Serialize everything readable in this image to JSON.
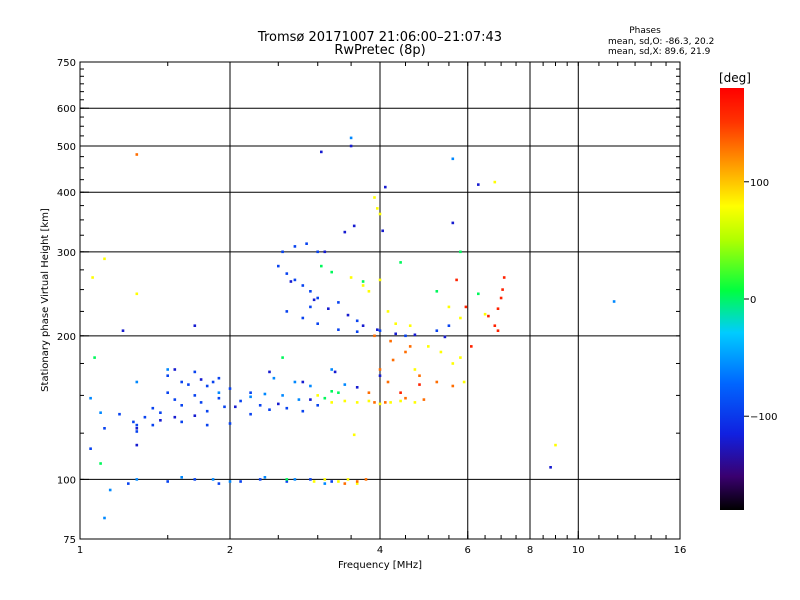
{
  "chart_data": {
    "type": "scatter",
    "title": "Tromsø 20171007 21:06:00–21:07:43",
    "subtitle": "RwPretec (8p)",
    "xlabel": "Frequency [MHz]",
    "ylabel": "Stationary phase Virtual Height [km]",
    "x_scale": "log",
    "y_scale": "log",
    "xlim": [
      1,
      16
    ],
    "ylim": [
      75,
      750
    ],
    "x_ticks": [
      1,
      2,
      4,
      6,
      8,
      10,
      16
    ],
    "x_tick_labels": [
      "1",
      "2",
      "4",
      "6",
      "8",
      "10",
      "16"
    ],
    "x_gridlines": [
      2,
      4,
      6,
      8,
      10
    ],
    "y_ticks": [
      75,
      100,
      200,
      300,
      400,
      500,
      600,
      750
    ],
    "y_tick_labels": [
      "75",
      "100",
      "200",
      "300",
      "400",
      "500",
      "600",
      "750"
    ],
    "y_gridlines": [
      100,
      200,
      300,
      400,
      500,
      600
    ],
    "grid": true,
    "phase_stats": {
      "heading": "Phases",
      "line1": "mean, sd,O: -86.3, 20.2",
      "line2": "mean, sd,X:  89.6, 21.9"
    },
    "colorbar": {
      "label": "[deg]",
      "range": [
        -180,
        180
      ],
      "ticks": [
        100,
        0,
        -100
      ],
      "tick_labels": [
        "100",
        "0",
        "−100"
      ],
      "colormap": "rainbow"
    },
    "series": [
      {
        "phase": -95,
        "points": [
          [
            1.05,
            116
          ],
          [
            1.12,
            128
          ],
          [
            1.2,
            137
          ],
          [
            1.28,
            132
          ],
          [
            1.3,
            130
          ],
          [
            1.35,
            135
          ],
          [
            1.4,
            141
          ],
          [
            1.45,
            138
          ],
          [
            1.5,
            152
          ],
          [
            1.55,
            147
          ],
          [
            1.6,
            143
          ],
          [
            1.65,
            158
          ],
          [
            1.7,
            150
          ],
          [
            1.75,
            145
          ],
          [
            1.8,
            139
          ],
          [
            1.85,
            160
          ],
          [
            1.9,
            148
          ],
          [
            1.95,
            142
          ],
          [
            2.0,
            155
          ],
          [
            2.1,
            146
          ],
          [
            2.2,
            152
          ],
          [
            2.3,
            143
          ],
          [
            1.5,
            165
          ],
          [
            1.6,
            160
          ],
          [
            1.7,
            168
          ],
          [
            1.8,
            157
          ],
          [
            1.9,
            163
          ],
          [
            1.3,
            126
          ],
          [
            1.4,
            130
          ],
          [
            1.6,
            132
          ],
          [
            1.8,
            130
          ],
          [
            2.0,
            131
          ],
          [
            2.2,
            137
          ],
          [
            2.4,
            140
          ],
          [
            2.6,
            141
          ],
          [
            2.8,
            139
          ],
          [
            3.0,
            143
          ],
          [
            1.25,
            98
          ],
          [
            1.5,
            99
          ],
          [
            1.7,
            100
          ],
          [
            1.9,
            98
          ],
          [
            2.1,
            99
          ],
          [
            2.3,
            100
          ],
          [
            2.6,
            99
          ],
          [
            2.9,
            100
          ],
          [
            3.2,
            99
          ],
          [
            2.5,
            280
          ],
          [
            2.6,
            270
          ],
          [
            2.7,
            262
          ],
          [
            2.8,
            255
          ],
          [
            2.9,
            248
          ],
          [
            3.0,
            240
          ],
          [
            2.55,
            300
          ],
          [
            2.7,
            308
          ],
          [
            2.85,
            312
          ],
          [
            3.0,
            300
          ],
          [
            2.6,
            225
          ],
          [
            2.8,
            218
          ],
          [
            3.0,
            212
          ],
          [
            3.3,
            206
          ],
          [
            3.6,
            204
          ],
          [
            2.9,
            230
          ],
          [
            3.3,
            235
          ],
          [
            3.6,
            215
          ],
          [
            4.0,
            205
          ],
          [
            4.5,
            200
          ],
          [
            5.2,
            205
          ],
          [
            5.5,
            210
          ]
        ]
      },
      {
        "phase": -120,
        "points": [
          [
            1.3,
            128
          ],
          [
            1.45,
            133
          ],
          [
            1.7,
            136
          ],
          [
            2.05,
            142
          ],
          [
            2.5,
            144
          ],
          [
            2.9,
            147
          ],
          [
            1.55,
            170
          ],
          [
            1.75,
            162
          ],
          [
            2.65,
            260
          ],
          [
            2.95,
            238
          ],
          [
            3.15,
            228
          ],
          [
            3.45,
            221
          ],
          [
            3.7,
            210
          ],
          [
            3.95,
            206
          ],
          [
            4.3,
            202
          ],
          [
            4.7,
            201
          ],
          [
            5.4,
            199
          ],
          [
            3.1,
            300
          ],
          [
            3.4,
            330
          ],
          [
            3.55,
            340
          ],
          [
            4.05,
            332
          ],
          [
            3.05,
            486
          ],
          [
            3.5,
            500
          ],
          [
            4.1,
            410
          ],
          [
            5.6,
            345
          ],
          [
            6.3,
            415
          ],
          [
            1.22,
            205
          ],
          [
            1.7,
            210
          ],
          [
            1.3,
            118
          ],
          [
            1.55,
            135
          ],
          [
            2.4,
            168
          ],
          [
            2.8,
            160
          ],
          [
            3.25,
            168
          ],
          [
            3.6,
            156
          ],
          [
            4.0,
            165
          ],
          [
            8.8,
            106
          ]
        ]
      },
      {
        "phase": -60,
        "points": [
          [
            1.3,
            100
          ],
          [
            1.6,
            101
          ],
          [
            1.85,
            100
          ],
          [
            2.0,
            99
          ],
          [
            2.35,
            101
          ],
          [
            2.7,
            100
          ],
          [
            3.1,
            98
          ],
          [
            1.9,
            152
          ],
          [
            2.2,
            149
          ],
          [
            2.35,
            151
          ],
          [
            2.55,
            150
          ],
          [
            2.75,
            147
          ],
          [
            2.45,
            163
          ],
          [
            2.7,
            160
          ],
          [
            2.9,
            157
          ],
          [
            3.2,
            170
          ],
          [
            3.4,
            158
          ],
          [
            1.5,
            170
          ],
          [
            1.05,
            148
          ],
          [
            1.1,
            138
          ],
          [
            1.3,
            160
          ],
          [
            1.15,
            95
          ],
          [
            1.12,
            83
          ],
          [
            3.5,
            520
          ],
          [
            5.6,
            470
          ],
          [
            11.8,
            236
          ]
        ]
      },
      {
        "phase": 0,
        "points": [
          [
            2.6,
            100
          ],
          [
            2.55,
            180
          ],
          [
            3.1,
            148
          ],
          [
            3.2,
            153
          ],
          [
            3.05,
            280
          ],
          [
            3.2,
            272
          ],
          [
            3.7,
            260
          ],
          [
            4.4,
            285
          ],
          [
            5.2,
            248
          ],
          [
            5.8,
            300
          ],
          [
            6.3,
            245
          ],
          [
            3.3,
            152
          ],
          [
            1.1,
            108
          ],
          [
            1.07,
            180
          ]
        ]
      },
      {
        "phase": 80,
        "points": [
          [
            2.95,
            99
          ],
          [
            3.1,
            100
          ],
          [
            3.3,
            99
          ],
          [
            3.45,
            100
          ],
          [
            3.6,
            98
          ],
          [
            3.2,
            145
          ],
          [
            3.4,
            146
          ],
          [
            3.6,
            145
          ],
          [
            3.8,
            146
          ],
          [
            4.0,
            144
          ],
          [
            4.2,
            145
          ],
          [
            4.4,
            146
          ],
          [
            4.7,
            145
          ],
          [
            3.0,
            150
          ],
          [
            3.5,
            265
          ],
          [
            3.7,
            255
          ],
          [
            3.8,
            248
          ],
          [
            4.0,
            262
          ],
          [
            4.15,
            225
          ],
          [
            4.3,
            212
          ],
          [
            4.6,
            210
          ],
          [
            5.0,
            190
          ],
          [
            5.3,
            185
          ],
          [
            5.6,
            175
          ],
          [
            5.8,
            180
          ],
          [
            3.9,
            390
          ],
          [
            3.95,
            370
          ],
          [
            4.0,
            360
          ],
          [
            5.5,
            230
          ],
          [
            5.8,
            218
          ],
          [
            1.06,
            265
          ],
          [
            1.12,
            290
          ],
          [
            1.3,
            245
          ],
          [
            6.5,
            222
          ],
          [
            6.8,
            420
          ],
          [
            5.9,
            160
          ],
          [
            4.7,
            170
          ],
          [
            9.0,
            118
          ],
          [
            3.55,
            124
          ]
        ]
      },
      {
        "phase": 130,
        "points": [
          [
            3.4,
            98
          ],
          [
            3.6,
            99
          ],
          [
            3.75,
            100
          ],
          [
            3.9,
            145
          ],
          [
            4.1,
            145
          ],
          [
            4.5,
            148
          ],
          [
            4.9,
            147
          ],
          [
            4.0,
            170
          ],
          [
            4.25,
            178
          ],
          [
            4.5,
            185
          ],
          [
            4.8,
            165
          ],
          [
            5.2,
            160
          ],
          [
            5.6,
            157
          ],
          [
            3.9,
            200
          ],
          [
            4.2,
            195
          ],
          [
            4.6,
            190
          ],
          [
            1.3,
            480
          ],
          [
            3.8,
            152
          ],
          [
            4.15,
            160
          ]
        ]
      },
      {
        "phase": 160,
        "points": [
          [
            6.9,
            228
          ],
          [
            7.0,
            240
          ],
          [
            7.05,
            250
          ],
          [
            6.6,
            220
          ],
          [
            6.8,
            210
          ],
          [
            6.9,
            205
          ],
          [
            4.4,
            152
          ],
          [
            4.8,
            158
          ],
          [
            6.1,
            190
          ],
          [
            7.1,
            265
          ],
          [
            5.7,
            262
          ],
          [
            5.95,
            230
          ]
        ]
      }
    ]
  }
}
